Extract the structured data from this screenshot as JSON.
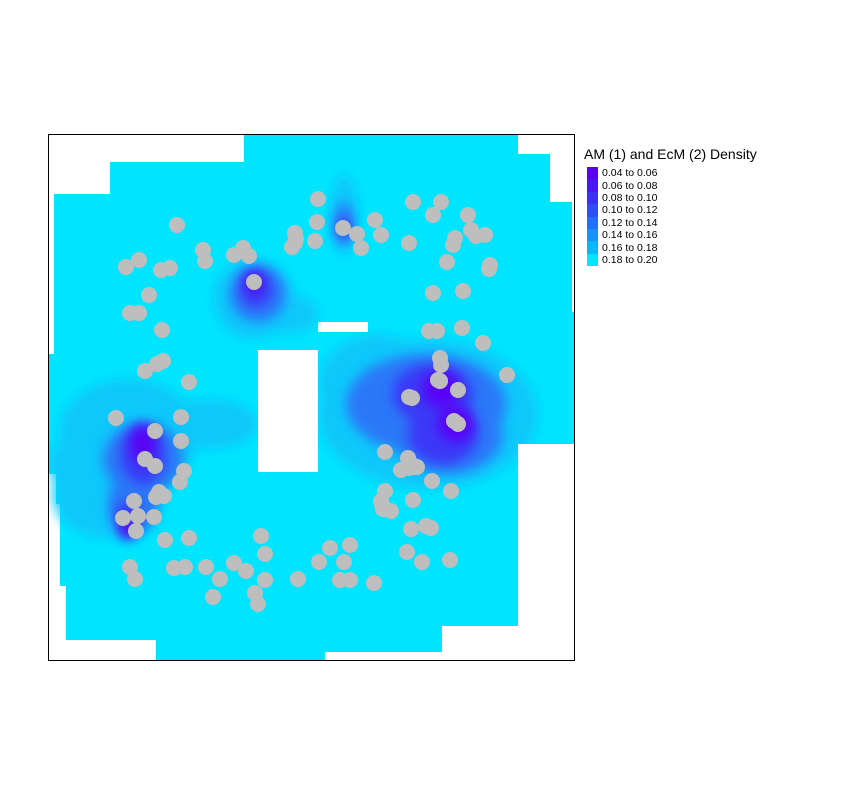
{
  "legend": {
    "title": "AM (1) and EcM (2) Density",
    "classes": [
      {
        "label": "0.04 to 0.06",
        "color": "#5a00f5"
      },
      {
        "label": "0.06 to 0.08",
        "color": "#4a16f6"
      },
      {
        "label": "0.08 to 0.10",
        "color": "#3a30f7"
      },
      {
        "label": "0.10 to 0.12",
        "color": "#2d4ef8"
      },
      {
        "label": "0.12 to 0.14",
        "color": "#2070f9"
      },
      {
        "label": "0.14 to 0.16",
        "color": "#1494fa"
      },
      {
        "label": "0.16 to 0.18",
        "color": "#08b8fb"
      },
      {
        "label": "0.18 to 0.20",
        "color": "#00e5ff"
      }
    ]
  },
  "colors": {
    "background_fill": "#00e5ff",
    "point_color": "#bebebe",
    "frame": "#000000"
  },
  "map": {
    "type": "density raster with point overlay",
    "points_shown": true
  }
}
